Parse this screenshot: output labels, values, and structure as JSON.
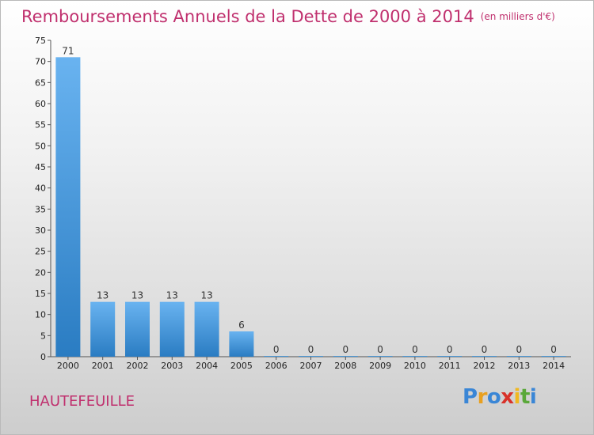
{
  "header": {
    "title": "Remboursements Annuels de la Dette de 2000 à 2014",
    "unit": "(en milliers d'€)"
  },
  "footer": {
    "commune": "HAUTEFEUILLE",
    "logo_text": "Proxiti"
  },
  "colors": {
    "title": "#c0306e",
    "bar_top": "#69b3f0",
    "bar_bottom": "#2a7cc2"
  },
  "chart_data": {
    "type": "bar",
    "title": "Remboursements Annuels de la Dette de 2000 à 2014",
    "subtitle": "(en milliers d'€)",
    "xlabel": "",
    "ylabel": "",
    "categories": [
      "2000",
      "2001",
      "2002",
      "2003",
      "2004",
      "2005",
      "2006",
      "2007",
      "2008",
      "2009",
      "2010",
      "2011",
      "2012",
      "2013",
      "2014"
    ],
    "values": [
      71,
      13,
      13,
      13,
      13,
      6,
      0,
      0,
      0,
      0,
      0,
      0,
      0,
      0,
      0
    ],
    "data_labels": [
      "71",
      "13",
      "13",
      "13",
      "13",
      "6",
      "0",
      "0",
      "0",
      "0",
      "0",
      "0",
      "0",
      "0",
      "0"
    ],
    "ylim": [
      0,
      75
    ],
    "yticks": [
      0,
      5,
      10,
      15,
      20,
      25,
      30,
      35,
      40,
      45,
      50,
      55,
      60,
      65,
      70,
      75
    ],
    "grid": false,
    "legend": "none"
  }
}
